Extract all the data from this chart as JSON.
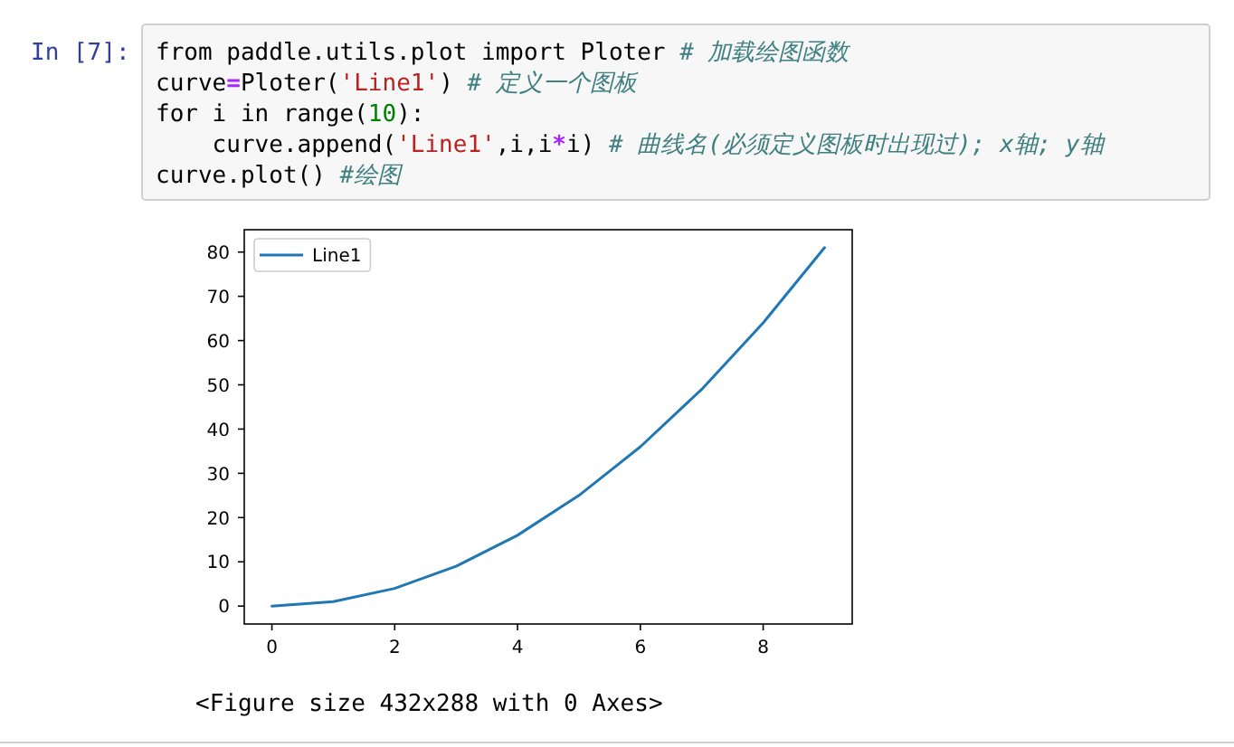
{
  "chart_data": {
    "type": "line",
    "annotations": [
      "In [7]:",
      "from paddle.utils.plot import Ploter # 加载绘图函数",
      "curve=Ploter('Line1') # 定义一个图板",
      "for i in range(10):",
      "    curve.append('Line1',i,i*i) # 曲线名(必须定义图板时出现过); x轴; y轴",
      "curve.plot() #绘图",
      "<Figure size 432x288 with 0 Axes>"
    ],
    "x": [
      0,
      1,
      2,
      3,
      4,
      5,
      6,
      7,
      8,
      9
    ],
    "series": [
      {
        "name": "Line1",
        "color": "#1f77b4",
        "values": [
          0,
          1,
          4,
          9,
          16,
          25,
          36,
          49,
          64,
          81
        ]
      }
    ],
    "xlim": [
      -0.45,
      9.45
    ],
    "ylim": [
      -4.05,
      85.05
    ],
    "xticks": [
      0,
      2,
      4,
      6,
      8
    ],
    "yticks": [
      0,
      10,
      20,
      30,
      40,
      50,
      60,
      70,
      80
    ],
    "legend": "top left",
    "grid": false
  }
}
